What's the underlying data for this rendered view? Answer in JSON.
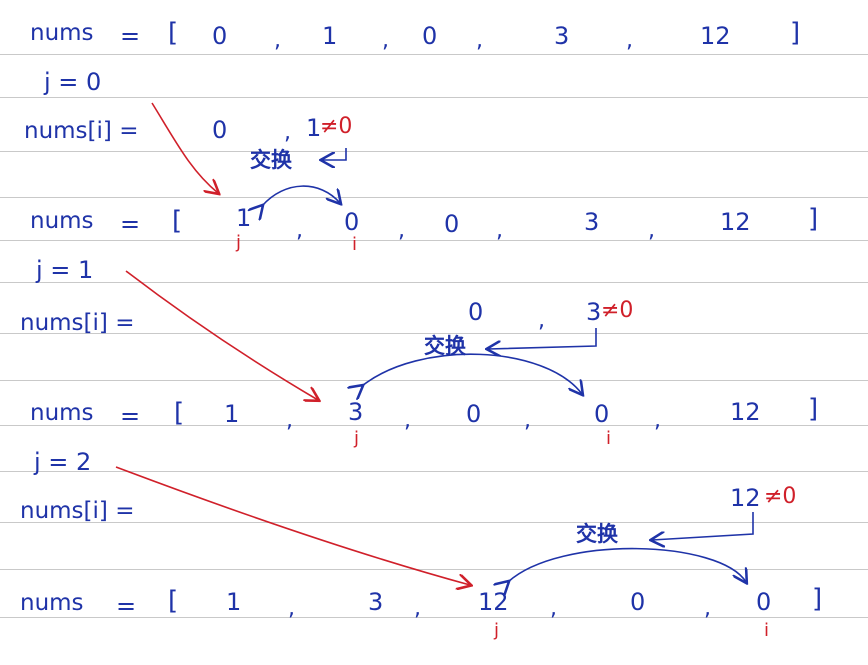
{
  "rows": [
    {
      "label": "nums",
      "eq": "=",
      "open": "[",
      "close": "]",
      "values": [
        "0",
        "1",
        "0",
        "3",
        "12"
      ],
      "commas": [
        ",",
        ",",
        ",",
        ","
      ]
    },
    {
      "label": "nums",
      "eq": "=",
      "open": "[",
      "close": "]",
      "values": [
        "1",
        "0",
        "0",
        "3",
        "12"
      ],
      "commas": [
        ",",
        ",",
        ",",
        ","
      ]
    },
    {
      "label": "nums",
      "eq": "=",
      "open": "[",
      "close": "]",
      "values": [
        "1",
        "3",
        "0",
        "0",
        "12"
      ],
      "commas": [
        ",",
        ",",
        ",",
        ","
      ]
    },
    {
      "label": "nums",
      "eq": "=",
      "open": "[",
      "close": "]",
      "values": [
        "1",
        "3",
        "12",
        "0",
        "0"
      ],
      "commas": [
        ",",
        ",",
        ",",
        ","
      ]
    }
  ],
  "j_lines": [
    {
      "text": "j = 0"
    },
    {
      "text": "j = 1"
    },
    {
      "text": "j = 2"
    }
  ],
  "steps": [
    {
      "label": "nums[i] =",
      "left": "0",
      "comma": ",",
      "right": "1",
      "neq": "≠0",
      "swap": "交换"
    },
    {
      "label": "nums[i] =",
      "left": "0",
      "comma": ",",
      "right": "3",
      "neq": "≠0",
      "swap": "交换"
    },
    {
      "label": "nums[i] =",
      "right": "12",
      "neq": "≠0",
      "swap": "交换"
    }
  ],
  "pointers": {
    "j": "j",
    "i": "i"
  },
  "colors": {
    "ink": "#1f33a8",
    "accent": "#d0202a",
    "rule": "#c9c9c9"
  }
}
